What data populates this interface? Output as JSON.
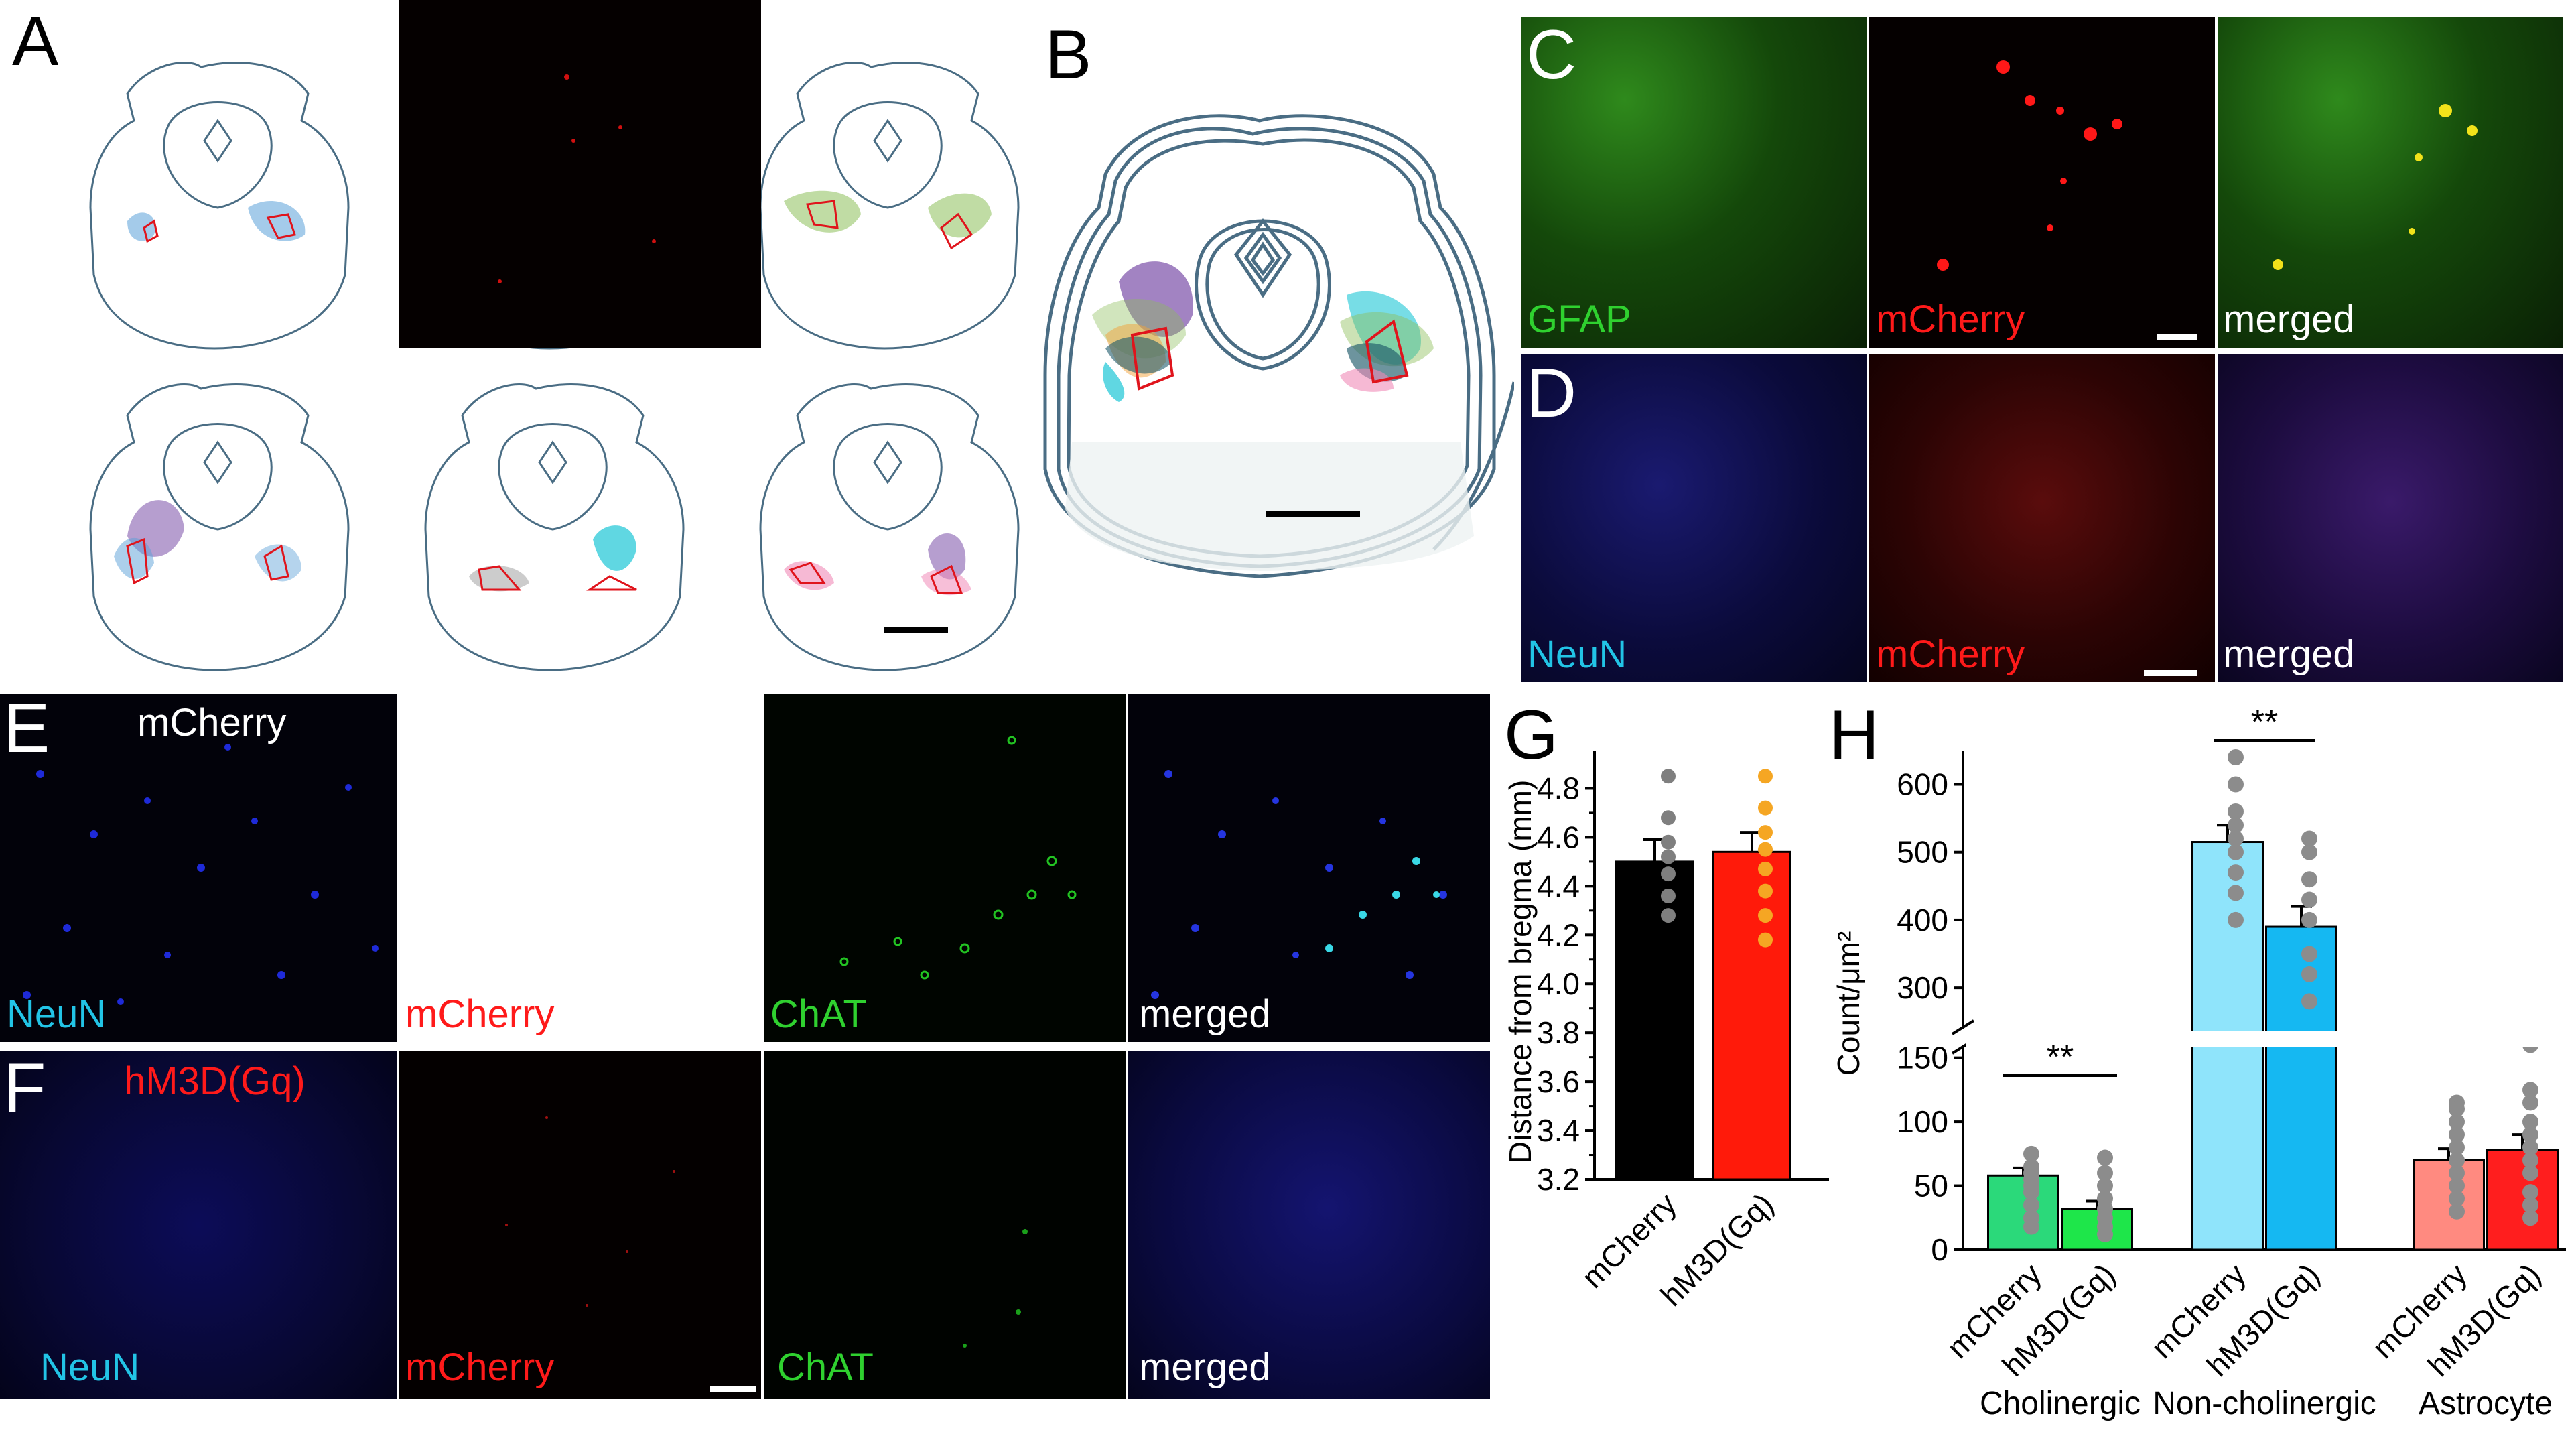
{
  "panel_letters": {
    "a": "A",
    "b": "B",
    "c": "C",
    "d": "D",
    "e": "E",
    "f": "F",
    "g": "G",
    "h": "H"
  },
  "panel_c": {
    "ch1": "GFAP",
    "ch2": "mCherry",
    "ch3": "merged"
  },
  "panel_d": {
    "ch1": "NeuN",
    "ch2": "mCherry",
    "ch3": "merged"
  },
  "panel_e": {
    "group": "mCherry",
    "ch1": "NeuN",
    "ch2": "mCherry",
    "ch3": "ChAT",
    "ch4": "merged"
  },
  "panel_f": {
    "group": "hM3D(Gq)",
    "ch1": "NeuN",
    "ch2": "mCherry",
    "ch3": "ChAT",
    "ch4": "merged"
  },
  "colors": {
    "outline": "#4a6d84",
    "red_contour": "#e0141c",
    "blue": "#5aa0d8",
    "orange": "#f2a23a",
    "gray": "#9a9a9a",
    "green": "#8dbf5a",
    "purple": "#7a4fa8",
    "cyan": "#1cc6d6",
    "pink": "#f08ab8",
    "grid_div": "#ffffff"
  },
  "chart_data": [
    {
      "type": "bar",
      "panel": "G",
      "categories": [
        "mCherry",
        "hM3D(Gq)"
      ],
      "values": [
        4.5,
        4.54
      ],
      "errors": [
        0.09,
        0.08
      ],
      "bar_colors": [
        "#000000",
        "#ff1a0a"
      ],
      "dot_colors": [
        "#7f7f7f",
        "#f5a623"
      ],
      "points": [
        [
          4.85,
          4.68,
          4.58,
          4.52,
          4.45,
          4.36,
          4.28
        ],
        [
          4.85,
          4.72,
          4.62,
          4.55,
          4.47,
          4.38,
          4.28,
          4.18
        ]
      ],
      "ylabel": "Distance from bregma (mm)",
      "ylim": [
        3.2,
        4.9
      ],
      "yticks": [
        "3.2",
        "3.4",
        "3.6",
        "3.8",
        "4.0",
        "4.2",
        "4.4",
        "4.6",
        "4.8"
      ]
    },
    {
      "type": "bar",
      "panel": "H",
      "group_labels": [
        "Cholinergic",
        "Non-cholinergic",
        "Astrocyte"
      ],
      "categories": [
        "mCherry",
        "hM3D(Gq)",
        "mCherry",
        "hM3D(Gq)",
        "mCherry",
        "hM3D(Gq)"
      ],
      "values": [
        58,
        32,
        515,
        390,
        70,
        78
      ],
      "errors": [
        6,
        6,
        25,
        30,
        9,
        12
      ],
      "bar_colors": [
        "#2bd97a",
        "#1ee64a",
        "#8fe4fb",
        "#15b8f2",
        "#ff8a80",
        "#ff1e1e"
      ],
      "points": [
        [
          75,
          65,
          60,
          55,
          50,
          45,
          35,
          25,
          18
        ],
        [
          72,
          60,
          50,
          40,
          32,
          25,
          18,
          12
        ],
        [
          640,
          600,
          560,
          540,
          520,
          500,
          470,
          440,
          400
        ],
        [
          520,
          500,
          460,
          430,
          400,
          350,
          320,
          280
        ],
        [
          115,
          110,
          100,
          90,
          80,
          70,
          60,
          50,
          40,
          30
        ],
        [
          160,
          125,
          115,
          100,
          90,
          80,
          70,
          60,
          45,
          35,
          25
        ]
      ],
      "significance": [
        "**",
        "**"
      ],
      "ylabel": "Count/μm²",
      "yticks_lower": [
        "0",
        "50",
        "100",
        "150"
      ],
      "yticks_upper": [
        "300",
        "400",
        "500",
        "600"
      ],
      "ylim_lower": [
        0,
        165
      ],
      "ylim_upper": [
        230,
        640
      ]
    }
  ]
}
